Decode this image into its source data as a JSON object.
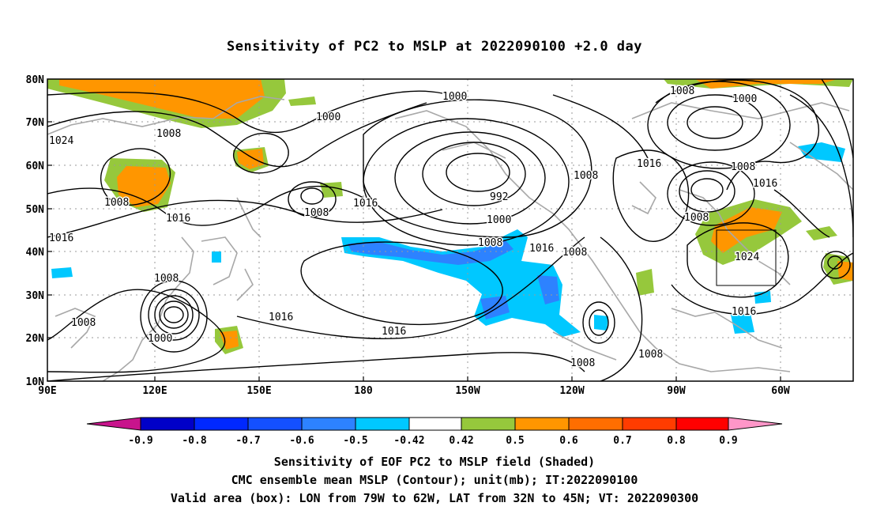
{
  "title": "Sensitivity of PC2 to MSLP at 2022090100 +2.0 day",
  "lat_labels": [
    "80N",
    "70N",
    "60N",
    "50N",
    "40N",
    "30N",
    "20N",
    "10N"
  ],
  "lon_labels": [
    "90E",
    "120E",
    "150E",
    "180",
    "150W",
    "120W",
    "90W",
    "60W"
  ],
  "contour_labels": [
    "1000",
    "1000",
    "1000",
    "1008",
    "1024",
    "1008",
    "1008",
    "1016",
    "992",
    "1008",
    "1016",
    "1008",
    "1008",
    "1016",
    "1016",
    "1008",
    "1008",
    "1016",
    "1000",
    "1008",
    "1016",
    "1008",
    "1016",
    "1008",
    "1016",
    "1024",
    "1016",
    "1008",
    "1008",
    "1000"
  ],
  "colorbar": {
    "labels": [
      "-0.9",
      "-0.8",
      "-0.7",
      "-0.6",
      "-0.5",
      "-0.42",
      "0.42",
      "0.5",
      "0.6",
      "0.7",
      "0.8",
      "0.9"
    ],
    "colors": [
      "#0000c8",
      "#0028ff",
      "#1450ff",
      "#2d82ff",
      "#00c8ff",
      "#ffffff",
      "#96c83c",
      "#ff9600",
      "#ff6e00",
      "#ff3c00",
      "#ff0000"
    ],
    "left_arrow_color": "#c8148c",
    "right_arrow_color": "#ff96c8"
  },
  "captions": [
    "Sensitivity of EOF PC2 to MSLP field (Shaded)",
    "CMC ensemble mean MSLP (Contour); unit(mb); IT:2022090100",
    "Valid area (box): LON from 79W to 62W, LAT from 32N to 45N; VT: 2022090300"
  ],
  "valid_box": {
    "lon_west": "79W",
    "lon_east": "62W",
    "lat_south": "32N",
    "lat_north": "45N"
  }
}
